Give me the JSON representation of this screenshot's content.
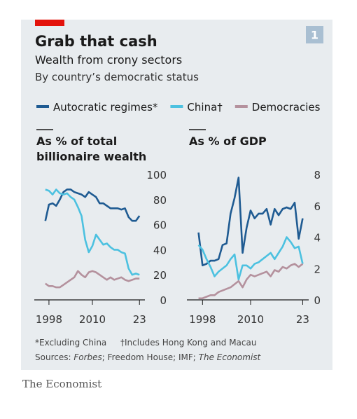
{
  "title": "Grab that cash",
  "subtitle": "Wealth from crony sectors",
  "subtitle2": "By country’s democratic status",
  "badge": "1",
  "footnotes": [
    "*Excluding China",
    "†Includes Hong Kong and Macau"
  ],
  "source": [
    "Sources: ",
    "Forbes",
    "; Freedom House; IMF; ",
    "The Economist"
  ],
  "brand": "The Economist",
  "chart_data": [
    {
      "type": "line",
      "title": [
        "As % of total",
        "billionaire wealth"
      ],
      "x": [
        1997,
        1998,
        1999,
        2000,
        2001,
        2002,
        2003,
        2004,
        2005,
        2006,
        2007,
        2008,
        2009,
        2010,
        2011,
        2012,
        2013,
        2014,
        2015,
        2016,
        2017,
        2018,
        2019,
        2020,
        2021,
        2022,
        2023
      ],
      "xlim": [
        1995.5,
        2024.5
      ],
      "xticks": [
        1998,
        2010,
        {
          "value": 2023,
          "label": "23"
        }
      ],
      "ylim": [
        0,
        100
      ],
      "yticks": [
        0,
        20,
        40,
        60,
        80,
        100
      ],
      "grid": false,
      "series": [
        {
          "name": "Autocratic regimes*",
          "color": "#1f5b92",
          "values": [
            63,
            76,
            77,
            75,
            80,
            86,
            88,
            88,
            86,
            85,
            84,
            82,
            86,
            84,
            82,
            77,
            77,
            75,
            73,
            73,
            73,
            72,
            73,
            66,
            63,
            63,
            67
          ]
        },
        {
          "name": "China†",
          "color": "#4cc1e0",
          "values": [
            88,
            87,
            84,
            88,
            85,
            84,
            85,
            82,
            80,
            74,
            67,
            48,
            38,
            43,
            52,
            48,
            44,
            45,
            42,
            40,
            40,
            38,
            37,
            25,
            20,
            21,
            20
          ]
        },
        {
          "name": "Democracies",
          "color": "#b4919d",
          "values": [
            13,
            11,
            11,
            10,
            10,
            12,
            14,
            16,
            18,
            23,
            20,
            18,
            22,
            23,
            22,
            20,
            18,
            16,
            18,
            16,
            17,
            18,
            16,
            15,
            16,
            17,
            17
          ]
        }
      ]
    },
    {
      "type": "line",
      "title": [
        "As % of GDP"
      ],
      "x": [
        1997,
        1998,
        1999,
        2000,
        2001,
        2002,
        2003,
        2004,
        2005,
        2006,
        2007,
        2008,
        2009,
        2010,
        2011,
        2012,
        2013,
        2014,
        2015,
        2016,
        2017,
        2018,
        2019,
        2020,
        2021,
        2022,
        2023
      ],
      "xlim": [
        1995.5,
        2024.5
      ],
      "xticks": [
        1998,
        2010,
        {
          "value": 2023,
          "label": "23"
        }
      ],
      "ylim": [
        0,
        8
      ],
      "yticks": [
        0,
        2,
        4,
        6,
        8
      ],
      "grid": false,
      "series": [
        {
          "name": "Autocratic regimes*",
          "color": "#1f5b92",
          "values": [
            4.3,
            2.2,
            2.3,
            2.5,
            2.5,
            2.6,
            3.5,
            3.6,
            5.5,
            6.5,
            7.8,
            3.0,
            4.6,
            5.7,
            5.2,
            5.5,
            5.5,
            5.8,
            4.8,
            5.8,
            5.4,
            5.8,
            5.9,
            5.8,
            6.2,
            3.9,
            5.2
          ]
        },
        {
          "name": "China†",
          "color": "#4cc1e0",
          "values": [
            3.5,
            3.2,
            2.6,
            2.1,
            1.5,
            1.8,
            2.0,
            2.2,
            2.6,
            2.9,
            1.3,
            2.2,
            2.2,
            2.0,
            2.3,
            2.4,
            2.6,
            2.8,
            3.0,
            2.6,
            3.0,
            3.4,
            4.0,
            3.7,
            3.3,
            3.4,
            2.3
          ]
        },
        {
          "name": "Democracies",
          "color": "#b4919d",
          "values": [
            0.1,
            0.1,
            0.2,
            0.3,
            0.3,
            0.5,
            0.6,
            0.7,
            0.8,
            1.0,
            1.2,
            0.8,
            1.3,
            1.6,
            1.5,
            1.6,
            1.7,
            1.8,
            1.5,
            1.9,
            1.8,
            2.1,
            2.0,
            2.2,
            2.3,
            2.1,
            2.3
          ]
        }
      ]
    }
  ]
}
